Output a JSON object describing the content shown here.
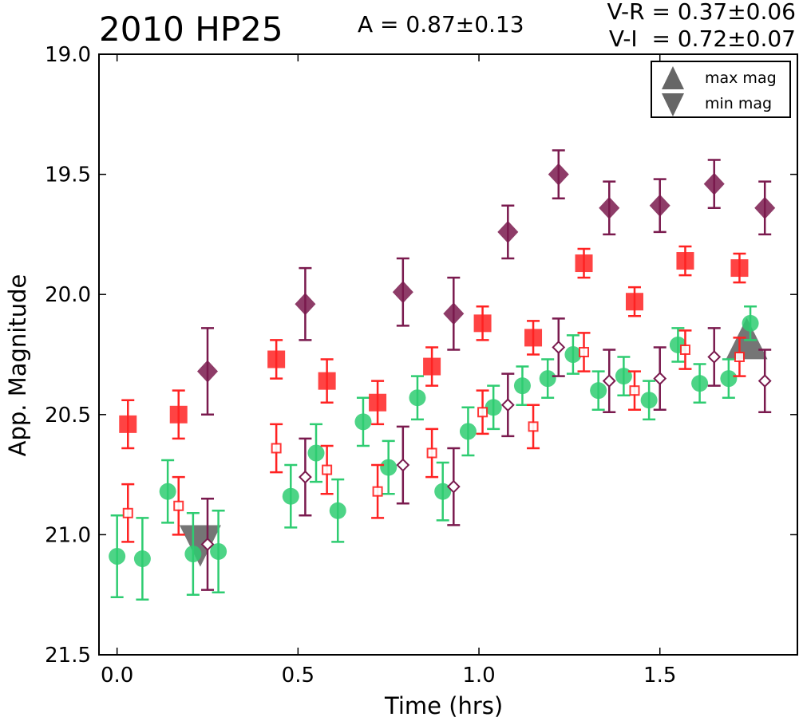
{
  "title": "2010 HP25",
  "amplitude_text": "A  = 0.87±0.13",
  "color_vr_text": "V-R = 0.37±0.06",
  "color_vi_text": "V-I  = 0.72±0.07",
  "colors": {
    "green": "#2ecc71",
    "red": "#ff2222",
    "purple": "#7a1a4e",
    "marker_gray": "#666666"
  },
  "chart_data": {
    "type": "scatter",
    "title": "2010 HP25",
    "xlabel": "Time (hrs)",
    "ylabel": "App. Magnitude",
    "xlim": [
      -0.05,
      1.88
    ],
    "ylim": [
      21.5,
      19.0
    ],
    "y_inverted": true,
    "xticks": [
      0.0,
      0.5,
      1.0,
      1.5
    ],
    "xtick_labels": [
      "0.0",
      "0.5",
      "1.0",
      "1.5"
    ],
    "yticks": [
      19.0,
      19.5,
      20.0,
      20.5,
      21.0,
      21.5
    ],
    "ytick_labels": [
      "19.0",
      "19.5",
      "20.0",
      "20.5",
      "21.0",
      "21.5"
    ],
    "grid": false,
    "legend_position": "top-right",
    "series": [
      {
        "marker": "circle",
        "color": "#2ecc71",
        "points": [
          {
            "x": 0.0,
            "y": 21.09,
            "err": 0.17
          },
          {
            "x": 0.07,
            "y": 21.1,
            "err": 0.17
          },
          {
            "x": 0.14,
            "y": 20.82,
            "err": 0.13
          },
          {
            "x": 0.21,
            "y": 21.08,
            "err": 0.17
          },
          {
            "x": 0.28,
            "y": 21.07,
            "err": 0.17
          },
          {
            "x": 0.48,
            "y": 20.84,
            "err": 0.13
          },
          {
            "x": 0.55,
            "y": 20.66,
            "err": 0.12
          },
          {
            "x": 0.61,
            "y": 20.9,
            "err": 0.13
          },
          {
            "x": 0.68,
            "y": 20.53,
            "err": 0.1
          },
          {
            "x": 0.75,
            "y": 20.72,
            "err": 0.11
          },
          {
            "x": 0.83,
            "y": 20.43,
            "err": 0.09
          },
          {
            "x": 0.9,
            "y": 20.82,
            "err": 0.12
          },
          {
            "x": 0.97,
            "y": 20.57,
            "err": 0.1
          },
          {
            "x": 1.04,
            "y": 20.47,
            "err": 0.09
          },
          {
            "x": 1.12,
            "y": 20.38,
            "err": 0.08
          },
          {
            "x": 1.19,
            "y": 20.35,
            "err": 0.08
          },
          {
            "x": 1.26,
            "y": 20.25,
            "err": 0.08
          },
          {
            "x": 1.33,
            "y": 20.4,
            "err": 0.08
          },
          {
            "x": 1.4,
            "y": 20.34,
            "err": 0.08
          },
          {
            "x": 1.47,
            "y": 20.44,
            "err": 0.08
          },
          {
            "x": 1.55,
            "y": 20.21,
            "err": 0.07
          },
          {
            "x": 1.61,
            "y": 20.37,
            "err": 0.08
          },
          {
            "x": 1.69,
            "y": 20.35,
            "err": 0.08
          },
          {
            "x": 1.75,
            "y": 20.12,
            "err": 0.07
          }
        ]
      },
      {
        "marker": "filled-square",
        "color": "#ff2222",
        "points": [
          {
            "x": 0.03,
            "y": 20.54,
            "err": 0.1
          },
          {
            "x": 0.17,
            "y": 20.5,
            "err": 0.1
          },
          {
            "x": 0.44,
            "y": 20.27,
            "err": 0.08
          },
          {
            "x": 0.58,
            "y": 20.36,
            "err": 0.09
          },
          {
            "x": 0.72,
            "y": 20.45,
            "err": 0.09
          },
          {
            "x": 0.87,
            "y": 20.3,
            "err": 0.08
          },
          {
            "x": 1.01,
            "y": 20.12,
            "err": 0.07
          },
          {
            "x": 1.15,
            "y": 20.18,
            "err": 0.07
          },
          {
            "x": 1.29,
            "y": 19.87,
            "err": 0.06
          },
          {
            "x": 1.43,
            "y": 20.03,
            "err": 0.06
          },
          {
            "x": 1.57,
            "y": 19.86,
            "err": 0.06
          },
          {
            "x": 1.72,
            "y": 19.89,
            "err": 0.06
          }
        ]
      },
      {
        "marker": "open-square",
        "color": "#ff2222",
        "points": [
          {
            "x": 0.03,
            "y": 20.91,
            "err": 0.12
          },
          {
            "x": 0.17,
            "y": 20.88,
            "err": 0.12
          },
          {
            "x": 0.44,
            "y": 20.64,
            "err": 0.1
          },
          {
            "x": 0.58,
            "y": 20.73,
            "err": 0.1
          },
          {
            "x": 0.72,
            "y": 20.82,
            "err": 0.11
          },
          {
            "x": 0.87,
            "y": 20.66,
            "err": 0.1
          },
          {
            "x": 1.01,
            "y": 20.49,
            "err": 0.09
          },
          {
            "x": 1.15,
            "y": 20.55,
            "err": 0.09
          },
          {
            "x": 1.29,
            "y": 20.24,
            "err": 0.08
          },
          {
            "x": 1.43,
            "y": 20.4,
            "err": 0.08
          },
          {
            "x": 1.57,
            "y": 20.23,
            "err": 0.08
          },
          {
            "x": 1.72,
            "y": 20.26,
            "err": 0.08
          }
        ]
      },
      {
        "marker": "filled-diamond",
        "color": "#7a1a4e",
        "points": [
          {
            "x": 0.25,
            "y": 20.32,
            "err": 0.18
          },
          {
            "x": 0.52,
            "y": 20.04,
            "err": 0.15
          },
          {
            "x": 0.79,
            "y": 19.99,
            "err": 0.14
          },
          {
            "x": 0.93,
            "y": 20.08,
            "err": 0.15
          },
          {
            "x": 1.08,
            "y": 19.74,
            "err": 0.11
          },
          {
            "x": 1.22,
            "y": 19.5,
            "err": 0.1
          },
          {
            "x": 1.36,
            "y": 19.64,
            "err": 0.11
          },
          {
            "x": 1.5,
            "y": 19.63,
            "err": 0.11
          },
          {
            "x": 1.65,
            "y": 19.54,
            "err": 0.1
          },
          {
            "x": 1.79,
            "y": 19.64,
            "err": 0.11
          }
        ]
      },
      {
        "marker": "open-diamond",
        "color": "#7a1a4e",
        "points": [
          {
            "x": 0.25,
            "y": 21.04,
            "err": 0.19
          },
          {
            "x": 0.52,
            "y": 20.76,
            "err": 0.16
          },
          {
            "x": 0.79,
            "y": 20.71,
            "err": 0.16
          },
          {
            "x": 0.93,
            "y": 20.8,
            "err": 0.16
          },
          {
            "x": 1.08,
            "y": 20.46,
            "err": 0.13
          },
          {
            "x": 1.22,
            "y": 20.22,
            "err": 0.12
          },
          {
            "x": 1.36,
            "y": 20.36,
            "err": 0.13
          },
          {
            "x": 1.5,
            "y": 20.35,
            "err": 0.13
          },
          {
            "x": 1.65,
            "y": 20.26,
            "err": 0.12
          },
          {
            "x": 1.79,
            "y": 20.36,
            "err": 0.13
          }
        ]
      }
    ],
    "extrema": [
      {
        "name": "max mag",
        "marker": "triangle-up",
        "x": 1.74,
        "y": 20.19
      },
      {
        "name": "min mag",
        "marker": "triangle-down",
        "x": 0.23,
        "y": 21.04
      }
    ],
    "legend": [
      "max mag",
      "min mag"
    ]
  }
}
